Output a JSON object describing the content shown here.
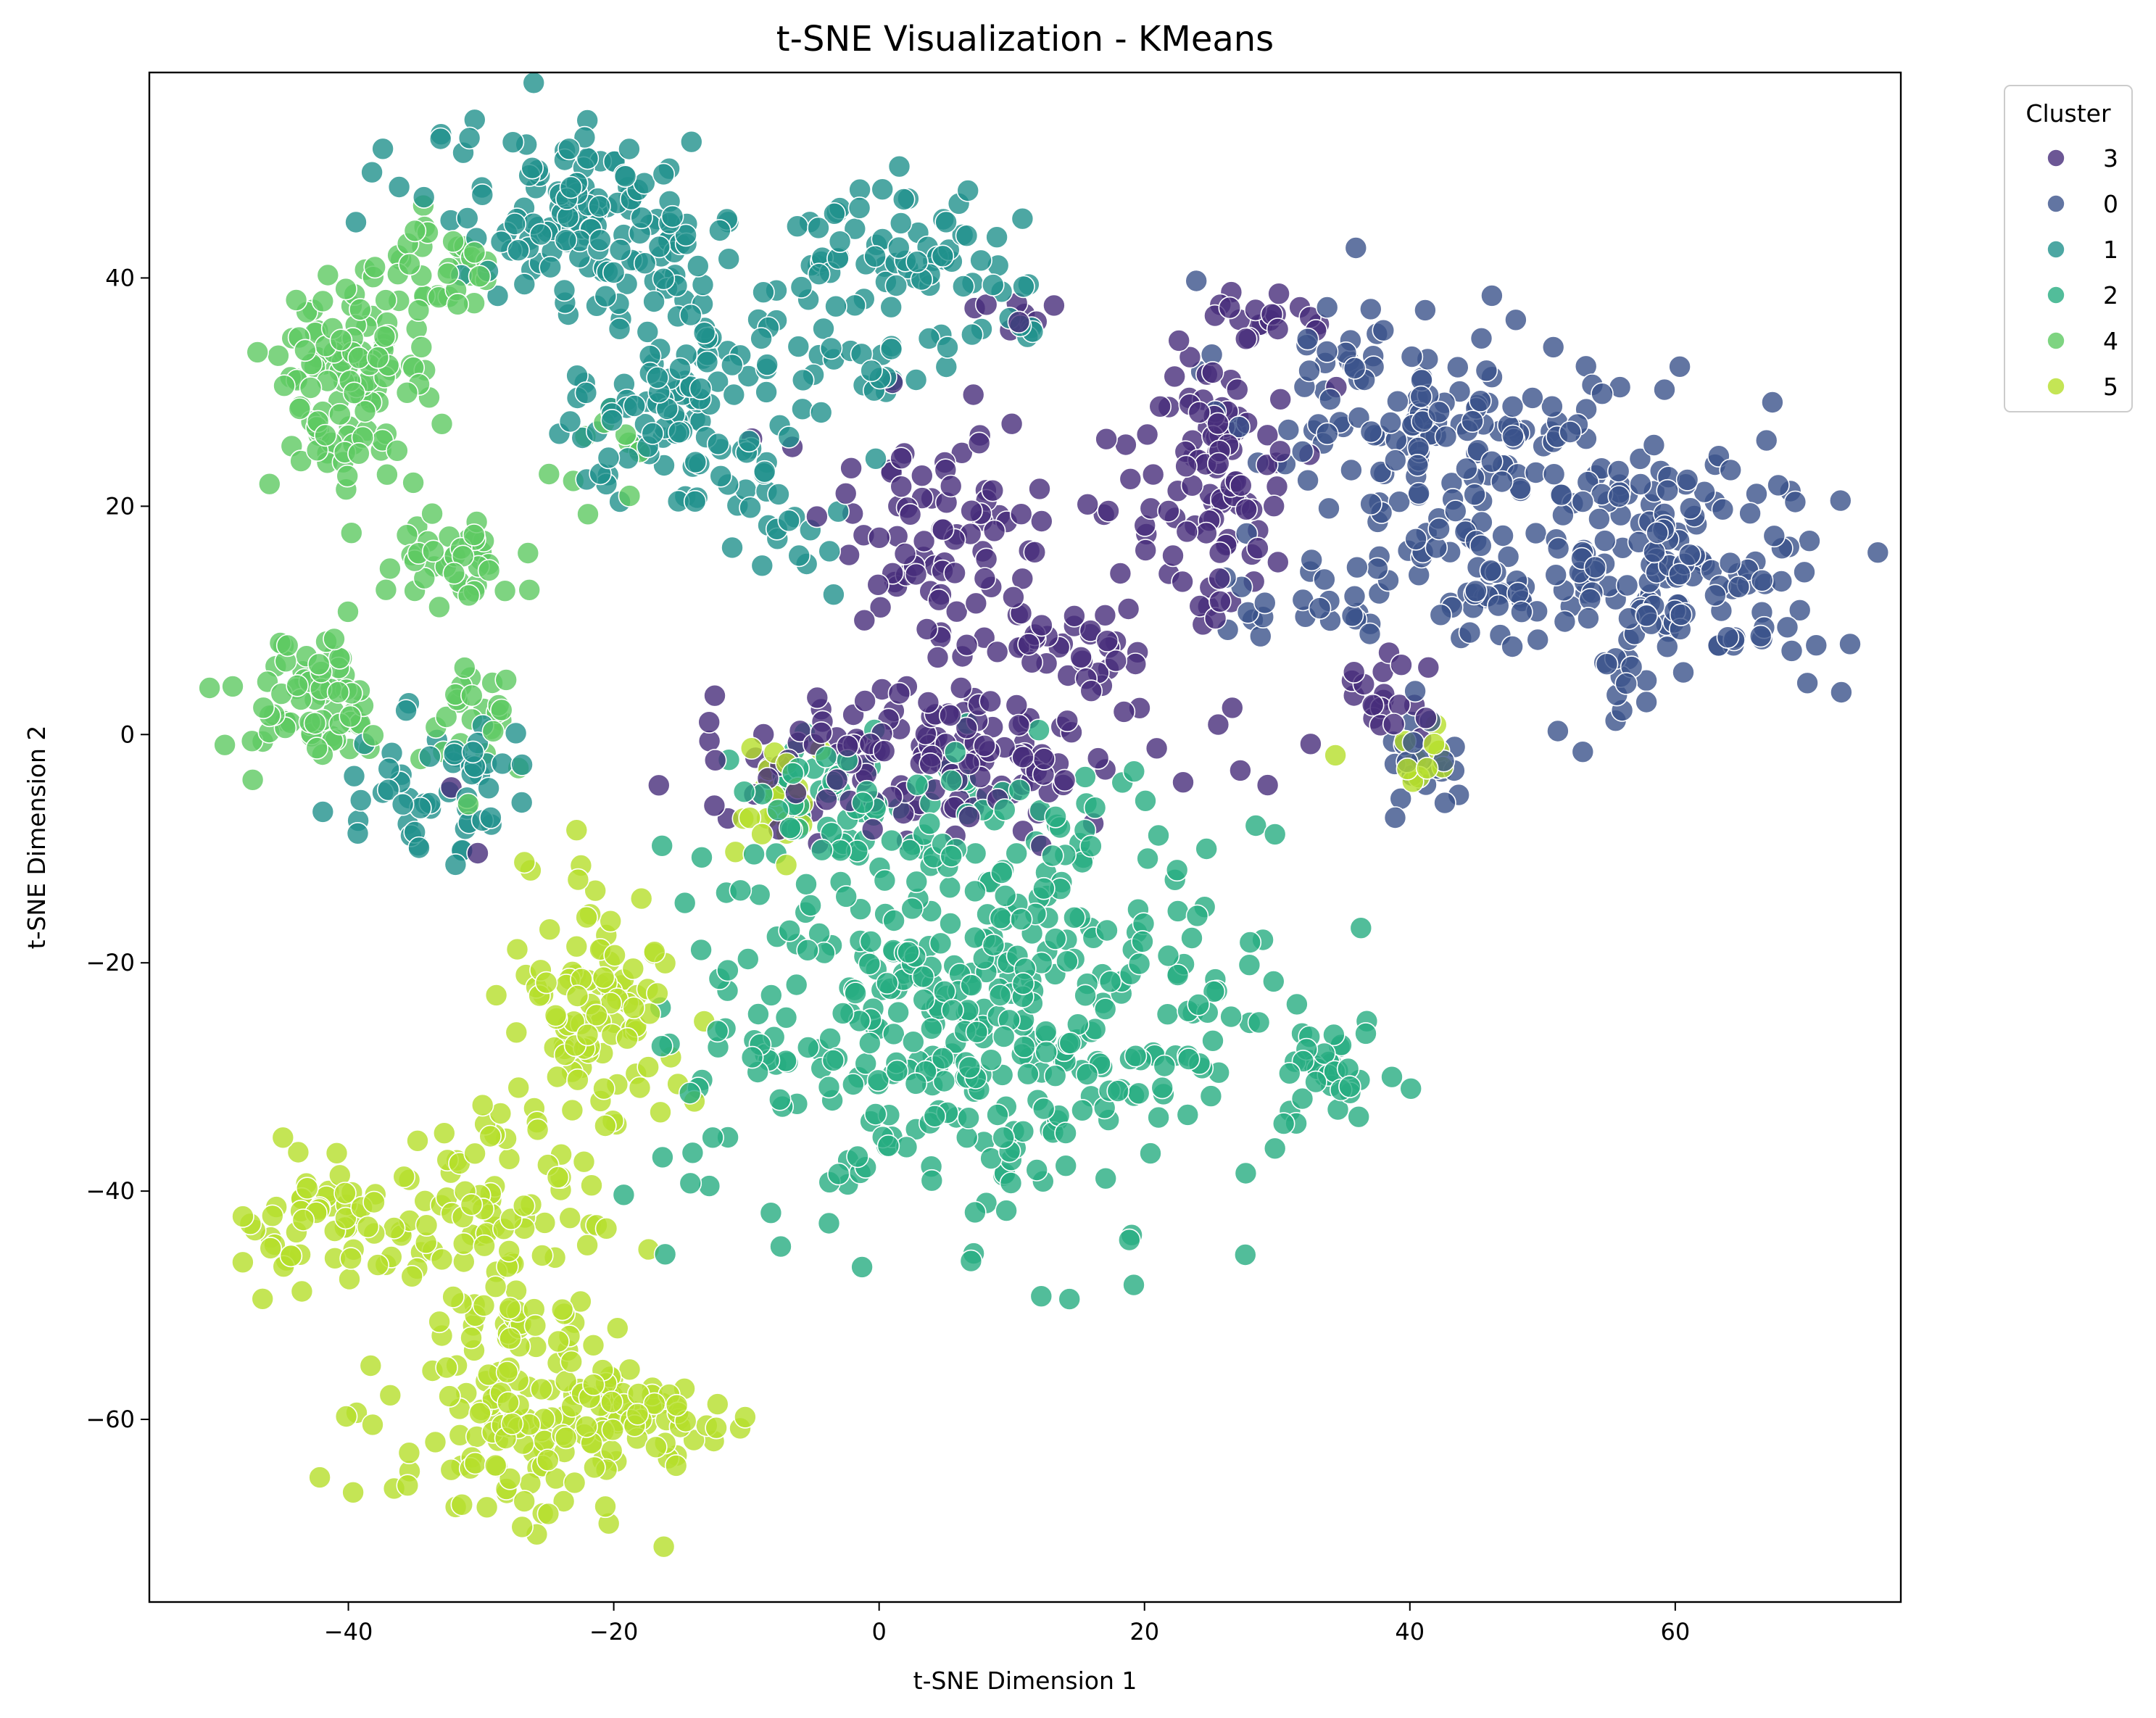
{
  "chart_data": {
    "type": "scatter",
    "title": "t-SNE Visualization - KMeans",
    "xlabel": "t-SNE Dimension 1",
    "ylabel": "t-SNE Dimension 2",
    "xlim": [
      -55,
      77
    ],
    "ylim": [
      -76,
      58
    ],
    "x_ticks": [
      -40,
      -20,
      0,
      20,
      40,
      60
    ],
    "y_ticks": [
      -60,
      -40,
      -20,
      0,
      20,
      40
    ],
    "x_tick_labels": [
      "−40",
      "−20",
      "0",
      "20",
      "40",
      "60"
    ],
    "y_tick_labels": [
      "−60",
      "−40",
      "−20",
      "0",
      "20",
      "40"
    ],
    "grid": false,
    "legend": {
      "title": "Cluster",
      "placement": "outside-top-right",
      "order": [
        "3",
        "0",
        "1",
        "2",
        "4",
        "5"
      ]
    },
    "marker_edge_color": "#ffffff",
    "marker_alpha": 0.8,
    "series": [
      {
        "name": "0",
        "color": "#3b528b",
        "clusters": [
          {
            "cx": 36,
            "cy": 30,
            "sx": 5,
            "sy": 5,
            "n": 70
          },
          {
            "cx": 48,
            "cy": 26,
            "sx": 6,
            "sy": 4,
            "n": 80
          },
          {
            "cx": 60,
            "cy": 14,
            "sx": 6,
            "sy": 6,
            "n": 170
          },
          {
            "cx": 40,
            "cy": 17,
            "sx": 4,
            "sy": 3,
            "n": 30
          },
          {
            "cx": 46,
            "cy": 12,
            "sx": 3,
            "sy": 2,
            "n": 25
          },
          {
            "cx": 32,
            "cy": 12,
            "sx": 4,
            "sy": 2,
            "n": 20
          },
          {
            "cx": 42,
            "cy": -2,
            "sx": 2,
            "sy": 3,
            "n": 20
          }
        ]
      },
      {
        "name": "1",
        "color": "#21918c",
        "clusters": [
          {
            "cx": -22,
            "cy": 45,
            "sx": 6,
            "sy": 4,
            "n": 150
          },
          {
            "cx": -14,
            "cy": 34,
            "sx": 3,
            "sy": 4,
            "n": 40
          },
          {
            "cx": -17,
            "cy": 26,
            "sx": 4,
            "sy": 3,
            "n": 60
          },
          {
            "cx": 2,
            "cy": 43,
            "sx": 4,
            "sy": 3,
            "n": 60
          },
          {
            "cx": -3,
            "cy": 34,
            "sx": 5,
            "sy": 3,
            "n": 40
          },
          {
            "cx": -7,
            "cy": 20,
            "sx": 3,
            "sy": 4,
            "n": 25
          },
          {
            "cx": -35,
            "cy": -5,
            "sx": 3,
            "sy": 3,
            "n": 35
          },
          {
            "cx": -30,
            "cy": -3,
            "sx": 2,
            "sy": 3,
            "n": 20
          },
          {
            "cx": 10,
            "cy": 37,
            "sx": 2,
            "sy": 2,
            "n": 10
          }
        ]
      },
      {
        "name": "2",
        "color": "#27ad81",
        "clusters": [
          {
            "cx": 8,
            "cy": -25,
            "sx": 11,
            "sy": 9,
            "n": 420
          },
          {
            "cx": 34,
            "cy": -29,
            "sx": 1.5,
            "sy": 2.5,
            "n": 30
          },
          {
            "cx": 2,
            "cy": -9,
            "sx": 7,
            "sy": 3,
            "n": 60
          },
          {
            "cx": -6,
            "cy": -4,
            "sx": 3,
            "sy": 2,
            "n": 20
          }
        ]
      },
      {
        "name": "3",
        "color": "#472d7b",
        "clusters": [
          {
            "cx": 5,
            "cy": -2,
            "sx": 9,
            "sy": 3,
            "n": 150
          },
          {
            "cx": 25,
            "cy": 22,
            "sx": 3,
            "sy": 6,
            "n": 100
          },
          {
            "cx": 4,
            "cy": 18,
            "sx": 5,
            "sy": 5,
            "n": 80
          },
          {
            "cx": 13,
            "cy": 8,
            "sx": 5,
            "sy": 3,
            "n": 40
          },
          {
            "cx": 29,
            "cy": 36,
            "sx": 2,
            "sy": 1.5,
            "n": 20
          },
          {
            "cx": 38,
            "cy": 4,
            "sx": 2,
            "sy": 3,
            "n": 20
          },
          {
            "cx": 10,
            "cy": 37,
            "sx": 2,
            "sy": 1,
            "n": 8
          }
        ]
      },
      {
        "name": "4",
        "color": "#5ec962",
        "clusters": [
          {
            "cx": -40,
            "cy": 30,
            "sx": 3,
            "sy": 5,
            "n": 110
          },
          {
            "cx": -34,
            "cy": 40,
            "sx": 3,
            "sy": 3,
            "n": 40
          },
          {
            "cx": -33,
            "cy": 15,
            "sx": 2.5,
            "sy": 2,
            "n": 40
          },
          {
            "cx": -43,
            "cy": 3,
            "sx": 3,
            "sy": 3,
            "n": 70
          },
          {
            "cx": -30,
            "cy": 2,
            "sx": 2,
            "sy": 2.5,
            "n": 25
          },
          {
            "cx": -20,
            "cy": 23,
            "sx": 2,
            "sy": 2,
            "n": 10
          }
        ]
      },
      {
        "name": "5",
        "color": "#b5de2b",
        "clusters": [
          {
            "cx": -27,
            "cy": -60,
            "sx": 5,
            "sy": 5,
            "n": 130
          },
          {
            "cx": -17,
            "cy": -60,
            "sx": 4,
            "sy": 2,
            "n": 50
          },
          {
            "cx": -41,
            "cy": -43,
            "sx": 3,
            "sy": 3,
            "n": 55
          },
          {
            "cx": -30,
            "cy": -43,
            "sx": 4,
            "sy": 5,
            "n": 90
          },
          {
            "cx": -21,
            "cy": -23,
            "sx": 3,
            "sy": 6,
            "n": 100
          },
          {
            "cx": -8,
            "cy": -6,
            "sx": 1.5,
            "sy": 3,
            "n": 20
          },
          {
            "cx": 41,
            "cy": -2,
            "sx": 2,
            "sy": 2,
            "n": 12
          }
        ]
      }
    ]
  }
}
